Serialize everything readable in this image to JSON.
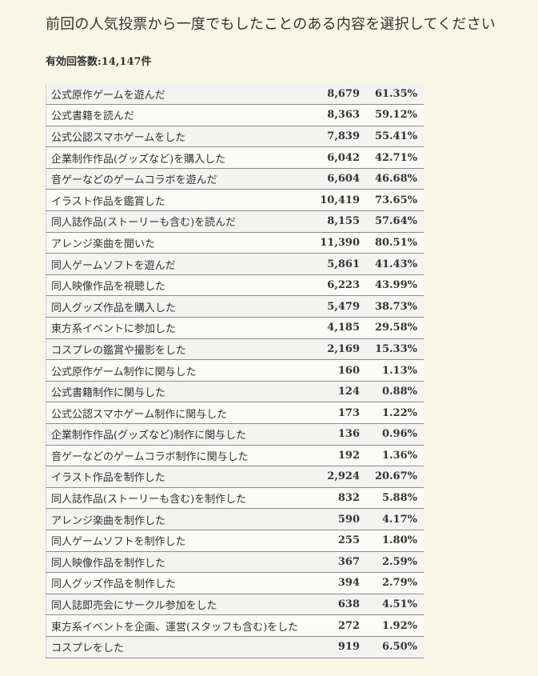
{
  "title": "前回の人気投票から一度でもしたことのある内容を選択してください",
  "summary": "有効回答数:14,147件",
  "table": {
    "rows": [
      [
        "公式原作ゲームを遊んだ",
        "8,679",
        "61.35%"
      ],
      [
        "公式書籍を読んだ",
        "8,363",
        "59.12%"
      ],
      [
        "公式公認スマホゲームをした",
        "7,839",
        "55.41%"
      ],
      [
        "企業制作作品(グッズなど)を購入した",
        "6,042",
        "42.71%"
      ],
      [
        "音ゲーなどのゲームコラボを遊んだ",
        "6,604",
        "46.68%"
      ],
      [
        "イラスト作品を鑑賞した",
        "10,419",
        "73.65%"
      ],
      [
        "同人誌作品(ストーリーも含む)を読んだ",
        "8,155",
        "57.64%"
      ],
      [
        "アレンジ楽曲を聞いた",
        "11,390",
        "80.51%"
      ],
      [
        "同人ゲームソフトを遊んだ",
        "5,861",
        "41.43%"
      ],
      [
        "同人映像作品を視聴した",
        "6,223",
        "43.99%"
      ],
      [
        "同人グッズ作品を購入した",
        "5,479",
        "38.73%"
      ],
      [
        "東方系イベントに参加した",
        "4,185",
        "29.58%"
      ],
      [
        "コスプレの鑑賞や撮影をした",
        "2,169",
        "15.33%"
      ],
      [
        "公式原作ゲーム制作に関与した",
        "160",
        "1.13%"
      ],
      [
        "公式書籍制作に関与した",
        "124",
        "0.88%"
      ],
      [
        "公式公認スマホゲーム制作に関与した",
        "173",
        "1.22%"
      ],
      [
        "企業制作作品(グッズなど)制作に関与した",
        "136",
        "0.96%"
      ],
      [
        "音ゲーなどのゲームコラボ制作に関与した",
        "192",
        "1.36%"
      ],
      [
        "イラスト作品を制作した",
        "2,924",
        "20.67%"
      ],
      [
        "同人誌作品(ストーリーも含む)を制作した",
        "832",
        "5.88%"
      ],
      [
        "アレンジ楽曲を制作した",
        "590",
        "4.17%"
      ],
      [
        "同人ゲームソフトを制作した",
        "255",
        "1.80%"
      ],
      [
        "同人映像作品を制作した",
        "367",
        "2.59%"
      ],
      [
        "同人グッズ作品を制作した",
        "394",
        "2.79%"
      ],
      [
        "同人誌即売会にサークル参加をした",
        "638",
        "4.51%"
      ],
      [
        "東方系イベントを企画、運営(スタッフも含む)をした",
        "272",
        "1.92%"
      ],
      [
        "コスプレをした",
        "919",
        "6.50%"
      ]
    ]
  }
}
